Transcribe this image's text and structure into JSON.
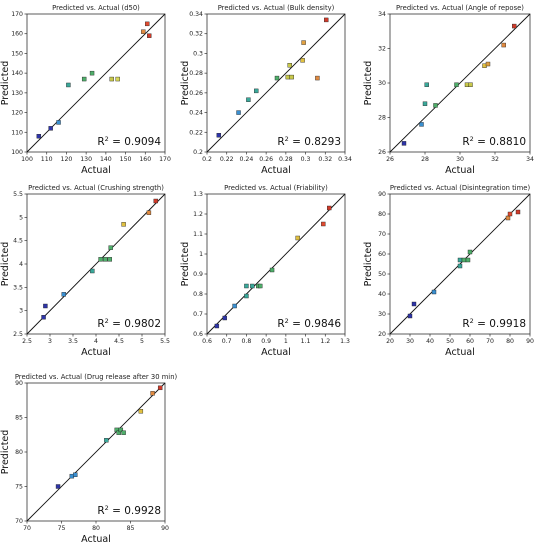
{
  "chart_data": [
    {
      "type": "scatter",
      "title": "Predicted vs. Actual (d50)",
      "xlabel": "Actual",
      "ylabel": "Predicted",
      "xlim": [
        100,
        170
      ],
      "ylim": [
        100,
        170
      ],
      "xticks": [
        "100",
        "110",
        "120",
        "130",
        "140",
        "150",
        "160",
        "170"
      ],
      "yticks": [
        "100",
        "110",
        "120",
        "130",
        "140",
        "150",
        "160",
        "170"
      ],
      "r2_label": "R",
      "r2_sup": "2",
      "r2_value": " = 0.9094",
      "grid": false,
      "points": [
        {
          "x": 106,
          "y": 108,
          "color": "#2e35a8"
        },
        {
          "x": 112,
          "y": 112,
          "color": "#2e35a8"
        },
        {
          "x": 116,
          "y": 115,
          "color": "#3a8fd0"
        },
        {
          "x": 121,
          "y": 134,
          "color": "#3aa89a"
        },
        {
          "x": 129,
          "y": 137,
          "color": "#4fae6a"
        },
        {
          "x": 133,
          "y": 140,
          "color": "#4fae6a"
        },
        {
          "x": 143,
          "y": 137,
          "color": "#c8c84a"
        },
        {
          "x": 146,
          "y": 137,
          "color": "#d8d858"
        },
        {
          "x": 159,
          "y": 161,
          "color": "#e08a40"
        },
        {
          "x": 161,
          "y": 165,
          "color": "#e04a30"
        },
        {
          "x": 162,
          "y": 159,
          "color": "#d03a2a"
        }
      ]
    },
    {
      "type": "scatter",
      "title": "Predicted vs. Actual (Bulk density)",
      "xlabel": "Actual",
      "ylabel": "Predicted",
      "xlim": [
        0.2,
        0.34
      ],
      "ylim": [
        0.2,
        0.34
      ],
      "xticks": [
        "0.2",
        "0.22",
        "0.24",
        "0.26",
        "0.28",
        "0.3",
        "0.32",
        "0.34"
      ],
      "yticks": [
        "0.2",
        "0.22",
        "0.24",
        "0.26",
        "0.28",
        "0.3",
        "0.32",
        "0.34"
      ],
      "r2_label": "R",
      "r2_sup": "2",
      "r2_value": " = 0.8293",
      "grid": false,
      "points": [
        {
          "x": 0.212,
          "y": 0.217,
          "color": "#2e35a8"
        },
        {
          "x": 0.232,
          "y": 0.24,
          "color": "#3a8fd0"
        },
        {
          "x": 0.242,
          "y": 0.253,
          "color": "#3aa89a"
        },
        {
          "x": 0.25,
          "y": 0.262,
          "color": "#3aa89a"
        },
        {
          "x": 0.271,
          "y": 0.275,
          "color": "#4fae6a"
        },
        {
          "x": 0.282,
          "y": 0.276,
          "color": "#c8c84a"
        },
        {
          "x": 0.286,
          "y": 0.276,
          "color": "#c8c84a"
        },
        {
          "x": 0.284,
          "y": 0.288,
          "color": "#c8c84a"
        },
        {
          "x": 0.297,
          "y": 0.293,
          "color": "#e0c040"
        },
        {
          "x": 0.298,
          "y": 0.311,
          "color": "#e0a040"
        },
        {
          "x": 0.312,
          "y": 0.275,
          "color": "#e08a40"
        },
        {
          "x": 0.321,
          "y": 0.334,
          "color": "#d03a2a"
        }
      ]
    },
    {
      "type": "scatter",
      "title": "Predicted vs. Actual (Angle of repose)",
      "xlabel": "Actual",
      "ylabel": "Predicted",
      "xlim": [
        26,
        34
      ],
      "ylim": [
        26,
        34
      ],
      "xticks": [
        "26",
        "28",
        "30",
        "32",
        "34"
      ],
      "yticks": [
        "26",
        "28",
        "30",
        "32",
        "34"
      ],
      "r2_label": "R",
      "r2_sup": "2",
      "r2_value": " = 0.8810",
      "grid": false,
      "points": [
        {
          "x": 26.8,
          "y": 26.5,
          "color": "#2e35a8"
        },
        {
          "x": 27.8,
          "y": 27.6,
          "color": "#3a8fd0"
        },
        {
          "x": 28.0,
          "y": 28.8,
          "color": "#3aa89a"
        },
        {
          "x": 28.1,
          "y": 29.9,
          "color": "#3aa89a"
        },
        {
          "x": 28.6,
          "y": 28.7,
          "color": "#4fae6a"
        },
        {
          "x": 29.8,
          "y": 29.9,
          "color": "#4fae6a"
        },
        {
          "x": 30.4,
          "y": 29.9,
          "color": "#c8c84a"
        },
        {
          "x": 30.6,
          "y": 29.9,
          "color": "#c8c84a"
        },
        {
          "x": 31.4,
          "y": 31.0,
          "color": "#e0c040"
        },
        {
          "x": 31.6,
          "y": 31.1,
          "color": "#e0a040"
        },
        {
          "x": 32.5,
          "y": 32.2,
          "color": "#e08a40"
        },
        {
          "x": 33.1,
          "y": 33.3,
          "color": "#d03a2a"
        }
      ]
    },
    {
      "type": "scatter",
      "title": "Predicted vs. Actual (Crushing strength)",
      "xlabel": "Actual",
      "ylabel": "Predicted",
      "xlim": [
        2.5,
        5.5
      ],
      "ylim": [
        2.5,
        5.5
      ],
      "xticks": [
        "2.5",
        "3",
        "3.5",
        "4",
        "4.5",
        "5",
        "5.5"
      ],
      "yticks": [
        "2.5",
        "3",
        "3.5",
        "4",
        "4.5",
        "5",
        "5.5"
      ],
      "r2_label": "R",
      "r2_sup": "2",
      "r2_value": " = 0.9802",
      "grid": false,
      "points": [
        {
          "x": 2.86,
          "y": 2.86,
          "color": "#2e35a8"
        },
        {
          "x": 2.9,
          "y": 3.1,
          "color": "#2e35a8"
        },
        {
          "x": 3.3,
          "y": 3.35,
          "color": "#3a8fd0"
        },
        {
          "x": 3.92,
          "y": 3.85,
          "color": "#3aa89a"
        },
        {
          "x": 4.1,
          "y": 4.1,
          "color": "#4fae6a"
        },
        {
          "x": 4.2,
          "y": 4.1,
          "color": "#4fae6a"
        },
        {
          "x": 4.3,
          "y": 4.1,
          "color": "#4fae6a"
        },
        {
          "x": 4.32,
          "y": 4.35,
          "color": "#4fae6a"
        },
        {
          "x": 4.6,
          "y": 4.85,
          "color": "#e0c040"
        },
        {
          "x": 5.15,
          "y": 5.1,
          "color": "#e08a40"
        },
        {
          "x": 5.3,
          "y": 5.35,
          "color": "#d03a2a"
        }
      ]
    },
    {
      "type": "scatter",
      "title": "Predicted vs. Actual (Friability)",
      "xlabel": "Actual",
      "ylabel": "Predicted",
      "xlim": [
        0.6,
        1.3
      ],
      "ylim": [
        0.6,
        1.3
      ],
      "xticks": [
        "0.6",
        "0.7",
        "0.8",
        "0.9",
        "1",
        "1.1",
        "1.2",
        "1.3"
      ],
      "yticks": [
        "0.6",
        "0.7",
        "0.8",
        "0.9",
        "1",
        "1.1",
        "1.2",
        "1.3"
      ],
      "r2_label": "R",
      "r2_sup": "2",
      "r2_value": " = 0.9846",
      "grid": false,
      "points": [
        {
          "x": 0.65,
          "y": 0.64,
          "color": "#2e35a8"
        },
        {
          "x": 0.69,
          "y": 0.68,
          "color": "#2e35a8"
        },
        {
          "x": 0.74,
          "y": 0.74,
          "color": "#3a8fd0"
        },
        {
          "x": 0.8,
          "y": 0.79,
          "color": "#3aa89a"
        },
        {
          "x": 0.8,
          "y": 0.84,
          "color": "#3aa89a"
        },
        {
          "x": 0.83,
          "y": 0.84,
          "color": "#3aa89a"
        },
        {
          "x": 0.86,
          "y": 0.84,
          "color": "#4fae6a"
        },
        {
          "x": 0.87,
          "y": 0.84,
          "color": "#4fae6a"
        },
        {
          "x": 0.93,
          "y": 0.92,
          "color": "#4fae6a"
        },
        {
          "x": 1.06,
          "y": 1.08,
          "color": "#e0c040"
        },
        {
          "x": 1.19,
          "y": 1.15,
          "color": "#e04a30"
        },
        {
          "x": 1.22,
          "y": 1.23,
          "color": "#d03a2a"
        }
      ]
    },
    {
      "type": "scatter",
      "title": "Predicted vs. Actual (Disintegration time)",
      "xlabel": "Actual",
      "ylabel": "Predicted",
      "xlim": [
        20,
        90
      ],
      "ylim": [
        20,
        90
      ],
      "xticks": [
        "20",
        "30",
        "40",
        "50",
        "60",
        "70",
        "80",
        "90"
      ],
      "yticks": [
        "20",
        "30",
        "40",
        "50",
        "60",
        "70",
        "80",
        "90"
      ],
      "r2_label": "R",
      "r2_sup": "2",
      "r2_value": " = 0.9918",
      "grid": false,
      "points": [
        {
          "x": 30,
          "y": 29,
          "color": "#2e35a8"
        },
        {
          "x": 32,
          "y": 35,
          "color": "#2e35a8"
        },
        {
          "x": 42,
          "y": 41,
          "color": "#3a8fd0"
        },
        {
          "x": 55,
          "y": 54,
          "color": "#3aa89a"
        },
        {
          "x": 55,
          "y": 57,
          "color": "#3aa89a"
        },
        {
          "x": 57,
          "y": 57,
          "color": "#4fae6a"
        },
        {
          "x": 59,
          "y": 57,
          "color": "#4fae6a"
        },
        {
          "x": 60,
          "y": 61,
          "color": "#4fae6a"
        },
        {
          "x": 79,
          "y": 78,
          "color": "#e08a40"
        },
        {
          "x": 80,
          "y": 80,
          "color": "#e04a30"
        },
        {
          "x": 84,
          "y": 81,
          "color": "#d03a2a"
        }
      ]
    },
    {
      "type": "scatter",
      "title": "Predicted vs. Actual (Drug release after 30 min)",
      "xlabel": "Actual",
      "ylabel": "Predicted",
      "xlim": [
        70,
        90
      ],
      "ylim": [
        70,
        90
      ],
      "xticks": [
        "70",
        "75",
        "80",
        "85",
        "90"
      ],
      "yticks": [
        "70",
        "75",
        "80",
        "85",
        "90"
      ],
      "r2_label": "R",
      "r2_sup": "2",
      "r2_value": " = 0.9928",
      "grid": false,
      "points": [
        {
          "x": 74.5,
          "y": 75.0,
          "color": "#2e35a8"
        },
        {
          "x": 76.5,
          "y": 76.5,
          "color": "#3a8fd0"
        },
        {
          "x": 77.0,
          "y": 76.7,
          "color": "#3a8fd0"
        },
        {
          "x": 81.5,
          "y": 81.7,
          "color": "#3aa89a"
        },
        {
          "x": 83.0,
          "y": 83.2,
          "color": "#4fae6a"
        },
        {
          "x": 83.3,
          "y": 82.8,
          "color": "#4fae6a"
        },
        {
          "x": 83.6,
          "y": 83.2,
          "color": "#4fae6a"
        },
        {
          "x": 84.0,
          "y": 82.8,
          "color": "#4fae6a"
        },
        {
          "x": 86.5,
          "y": 85.9,
          "color": "#e0c040"
        },
        {
          "x": 88.2,
          "y": 88.5,
          "color": "#e08a40"
        },
        {
          "x": 89.3,
          "y": 89.3,
          "color": "#d03a2a"
        }
      ]
    }
  ]
}
